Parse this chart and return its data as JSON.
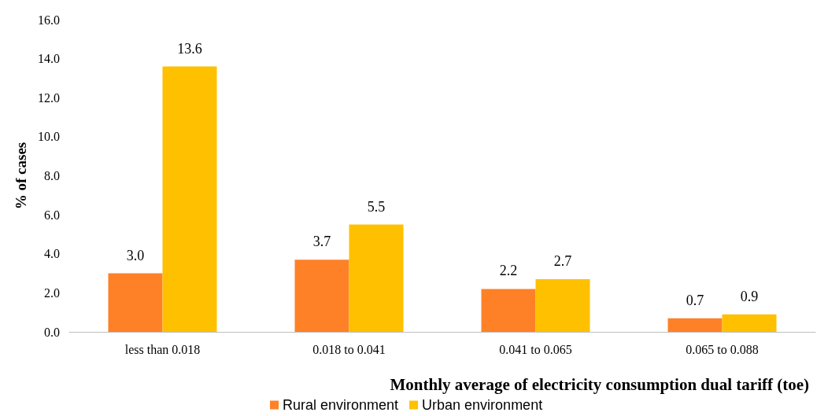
{
  "chart_data": {
    "type": "bar",
    "xlabel": "Monthly average of electricity consumption dual tariff (toe)",
    "ylabel": "% of cases",
    "categories": [
      "less than 0.018",
      "0.018 to 0.041",
      "0.041 to 0.065",
      "0.065 to 0.088"
    ],
    "series": [
      {
        "name": "Rural environment",
        "color": "#fe8128",
        "values": [
          3.0,
          3.7,
          2.2,
          0.7
        ],
        "value_labels": [
          "3.0",
          "3.7",
          "2.2",
          "0.7"
        ]
      },
      {
        "name": "Urban environment",
        "color": "#ffc000",
        "values": [
          13.6,
          5.5,
          2.7,
          0.9
        ],
        "value_labels": [
          "13.6",
          "5.5",
          "2.7",
          "0.9"
        ]
      }
    ],
    "ylim": [
      0,
      16
    ],
    "yticks": [
      {
        "value": 0,
        "label": "0.0"
      },
      {
        "value": 2,
        "label": "2.0"
      },
      {
        "value": 4,
        "label": "4.0"
      },
      {
        "value": 6,
        "label": "6.0"
      },
      {
        "value": 8,
        "label": "8.0"
      },
      {
        "value": 10,
        "label": "10.0"
      },
      {
        "value": 12,
        "label": "12.0"
      },
      {
        "value": 14,
        "label": "14.0"
      },
      {
        "value": 16,
        "label": "16.0"
      }
    ],
    "grid": false,
    "legend": "bottom"
  }
}
